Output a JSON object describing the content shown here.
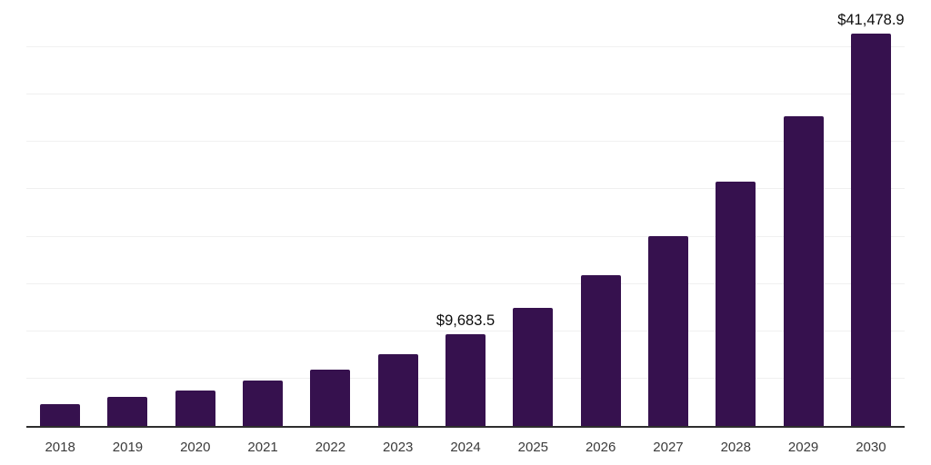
{
  "chart_data": {
    "type": "bar",
    "title": "",
    "xlabel": "",
    "ylabel": "",
    "categories": [
      "2018",
      "2019",
      "2020",
      "2021",
      "2022",
      "2023",
      "2024",
      "2025",
      "2026",
      "2027",
      "2028",
      "2029",
      "2030"
    ],
    "values": [
      2320,
      3090,
      3720,
      4770,
      5960,
      7620,
      9683.5,
      12440,
      15930,
      20100,
      25780,
      32690,
      41478.9
    ],
    "point_labels": [
      "",
      "",
      "",
      "",
      "",
      "",
      "$9,683.5",
      "",
      "",
      "",
      "",
      "",
      "$41,478.9"
    ],
    "ylim": [
      0,
      45000
    ],
    "gridline_step": 5000,
    "grid": "horizontal",
    "legend": "none",
    "y_axis_tick_labels_visible": false
  },
  "style": {
    "bar_color": "#36114E",
    "gridline_color": "#f0f0f0",
    "axis_line_color": "#2e2e2e",
    "tick_label_color": "#3b3b3b",
    "data_label_color": "#0c0c0c",
    "background_color": "#ffffff"
  }
}
